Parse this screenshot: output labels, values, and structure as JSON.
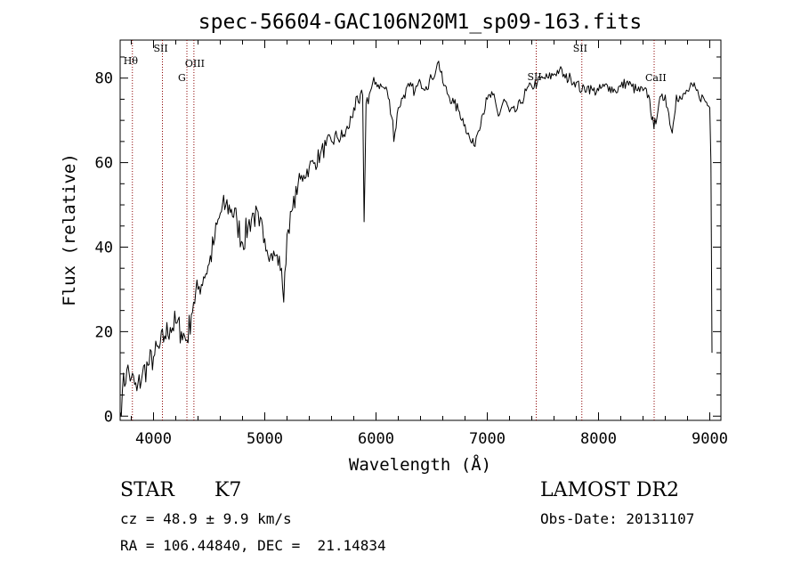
{
  "chart_data": {
    "type": "line",
    "title": "spec-56604-GAC106N20M1_sp09-163.fits",
    "xlabel": "Wavelength (Å)",
    "ylabel": "Flux (relative)",
    "xlim": [
      3700,
      9100
    ],
    "ylim": [
      -1,
      89
    ],
    "grid": false,
    "legend": "none",
    "line_color": "#000000",
    "marker_color": "#8b0000",
    "x_ticks": [
      4000,
      5000,
      6000,
      7000,
      8000,
      9000
    ],
    "y_ticks": [
      0,
      20,
      40,
      60,
      80
    ],
    "x_tick_labels": [
      "4000",
      "5000",
      "6000",
      "7000",
      "8000",
      "9000"
    ],
    "y_tick_labels": [
      "0",
      "20",
      "40",
      "60",
      "80"
    ],
    "line_markers": [
      {
        "wavelength": 3810,
        "label": "Hθ"
      },
      {
        "wavelength": 4080,
        "label": "SII"
      },
      {
        "wavelength": 4300,
        "label": "G"
      },
      {
        "wavelength": 4363,
        "label": "OIII"
      },
      {
        "wavelength": 7440,
        "label": "SII"
      },
      {
        "wavelength": 7850,
        "label": "SII"
      },
      {
        "wavelength": 8500,
        "label": "CaII"
      }
    ],
    "series": [
      {
        "x": [
          3700,
          3720,
          3760,
          3800,
          3850,
          3900,
          3950,
          4000,
          4050,
          4100,
          4150,
          4200,
          4250,
          4300,
          4340,
          4360,
          4400,
          4450,
          4500,
          4550,
          4600,
          4650,
          4700,
          4750,
          4800,
          4850,
          4900,
          4950,
          5000,
          5050,
          5100,
          5150,
          5170,
          5200,
          5250,
          5300,
          5350,
          5400,
          5450,
          5500,
          5550,
          5600,
          5650,
          5700,
          5750,
          5800,
          5850,
          5880,
          5893,
          5910,
          5950,
          6000,
          6050,
          6100,
          6150,
          6160,
          6200,
          6250,
          6300,
          6350,
          6400,
          6450,
          6500,
          6540,
          6563,
          6600,
          6650,
          6700,
          6750,
          6800,
          6850,
          6880,
          6900,
          6950,
          7000,
          7050,
          7100,
          7150,
          7200,
          7250,
          7300,
          7350,
          7400,
          7450,
          7500,
          7550,
          7600,
          7650,
          7700,
          7750,
          7800,
          7850,
          7900,
          7950,
          8000,
          8050,
          8100,
          8150,
          8200,
          8250,
          8300,
          8350,
          8400,
          8450,
          8498,
          8542,
          8600,
          8662,
          8700,
          8750,
          8800,
          8850,
          8900,
          8950,
          9000,
          9010,
          9020
        ],
        "y": [
          1,
          6,
          11,
          9,
          6,
          10,
          12,
          14,
          16,
          19,
          21,
          22,
          20,
          18,
          24,
          27,
          30,
          33,
          36,
          42,
          48,
          50,
          49,
          46,
          41,
          45,
          48,
          45,
          42,
          38,
          38,
          35,
          27,
          43,
          49,
          55,
          57,
          59,
          60,
          62,
          64,
          65,
          66,
          66,
          68,
          73,
          74,
          76,
          46,
          74,
          77,
          79,
          78,
          77,
          70,
          65,
          73,
          76,
          78,
          77,
          79,
          78,
          80,
          82,
          84,
          79,
          76,
          74,
          72,
          69,
          65,
          64,
          66,
          71,
          75,
          76,
          71,
          75,
          72,
          72,
          74,
          77,
          78,
          79,
          80,
          80,
          81,
          82,
          80,
          80,
          79,
          77,
          78,
          77,
          77,
          78,
          78,
          77,
          78,
          79,
          78,
          77,
          77,
          76,
          68,
          74,
          76,
          67,
          76,
          75,
          77,
          78,
          76,
          75,
          73,
          60,
          15
        ]
      }
    ]
  },
  "info": {
    "obj_class": "STAR",
    "subclass": "K7",
    "redshift_line": "cz = 48.9 ± 9.9 km/s",
    "coords_line": "RA = 106.44840, DEC =  21.14834",
    "survey": "LAMOST DR2",
    "obs_date_line": "Obs-Date: 20131107"
  }
}
